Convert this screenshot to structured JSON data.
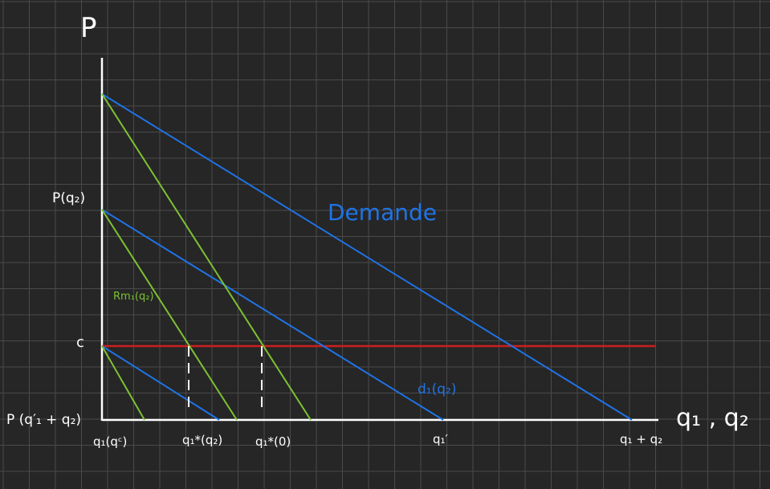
{
  "colors": {
    "background": "#262626",
    "grid": "#4a4a4a",
    "axis": "#ffffff",
    "text": "#ffffff",
    "demand": "#1f74e6",
    "reaction": "#7cc232",
    "cost": "#cc1f1f"
  },
  "labels": {
    "y_axis": "P",
    "x_axis": "q₁ , q₂",
    "price_q2": "P(q₂)",
    "cost": "c",
    "price_q1q2": "P (q′₁ + q₂)",
    "demand": "Demande",
    "residual_demand": "d₁(q₂)",
    "reaction": "Rm₁(q₂)",
    "x_q1_qc": "q₁(qᶜ)",
    "x_q1_star_q2": "q₁*(q₂)",
    "x_q1_star_0": "q₁*(0)",
    "x_q1_prime": "q₁′",
    "x_q1_plus_q2": "q₁ + q₂"
  }
}
